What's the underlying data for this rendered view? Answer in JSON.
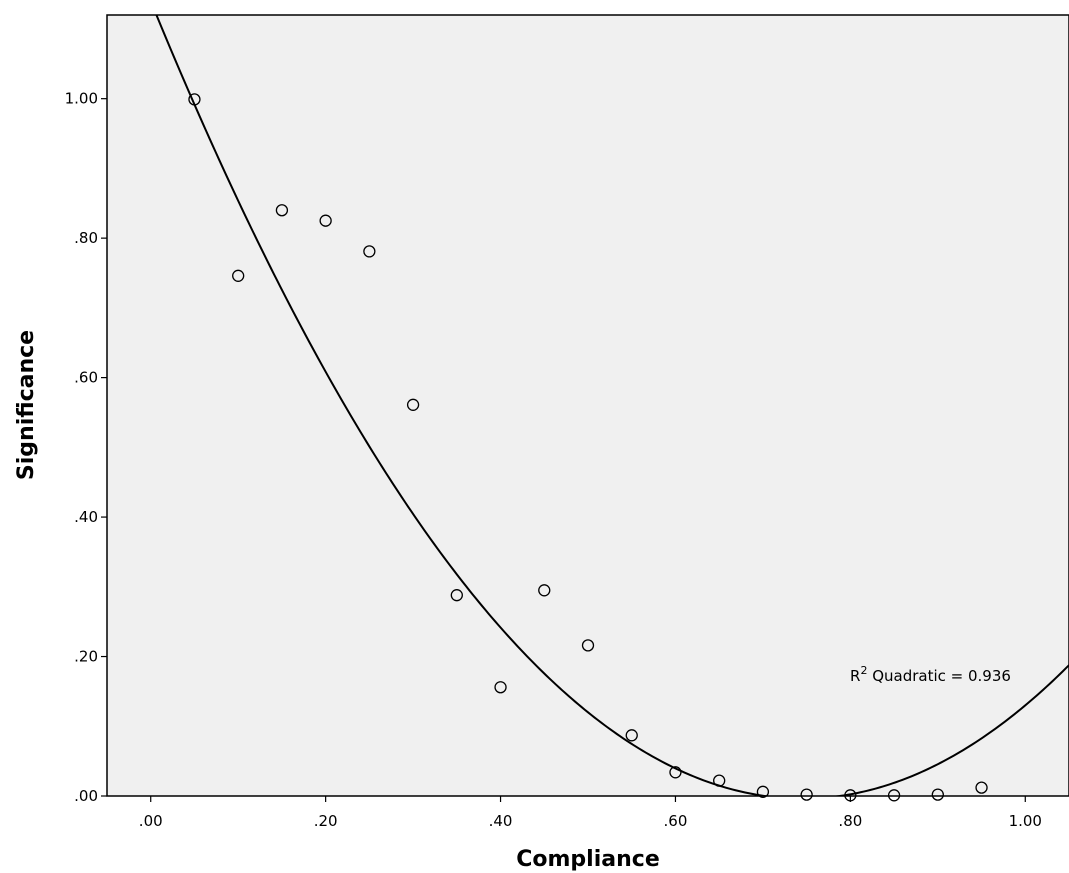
{
  "chart_data": {
    "type": "scatter",
    "title": "",
    "xlabel": "Compliance",
    "ylabel": "Significance",
    "xlim": [
      -0.05,
      1.05
    ],
    "ylim": [
      0.0,
      1.12
    ],
    "x_ticks": [
      0.0,
      0.2,
      0.4,
      0.6,
      0.8,
      1.0
    ],
    "x_tick_labels": [
      ".00",
      ".20",
      ".40",
      ".60",
      ".80",
      "1.00"
    ],
    "y_ticks": [
      0.0,
      0.2,
      0.4,
      0.6,
      0.8,
      1.0
    ],
    "y_tick_labels": [
      ".00",
      ".20",
      ".40",
      ".60",
      ".80",
      "1.00"
    ],
    "grid": false,
    "background_color": "#f0f0f0",
    "points": {
      "x": [
        0.05,
        0.1,
        0.15,
        0.2,
        0.25,
        0.3,
        0.35,
        0.4,
        0.45,
        0.5,
        0.55,
        0.6,
        0.65,
        0.7,
        0.75,
        0.8,
        0.85,
        0.9,
        0.95
      ],
      "y": [
        0.999,
        0.746,
        0.84,
        0.825,
        0.781,
        0.561,
        0.288,
        0.156,
        0.295,
        0.216,
        0.087,
        0.034,
        0.022,
        0.006,
        0.002,
        0.001,
        0.001,
        0.002,
        0.012
      ]
    },
    "fit": {
      "kind": "quadratic",
      "coefficients": {
        "a": 2.06,
        "b": -3.07,
        "c": 1.14
      },
      "annotation_prefix": "R",
      "annotation_superscript": "2",
      "annotation_text": " Quadratic = 0.936"
    }
  }
}
